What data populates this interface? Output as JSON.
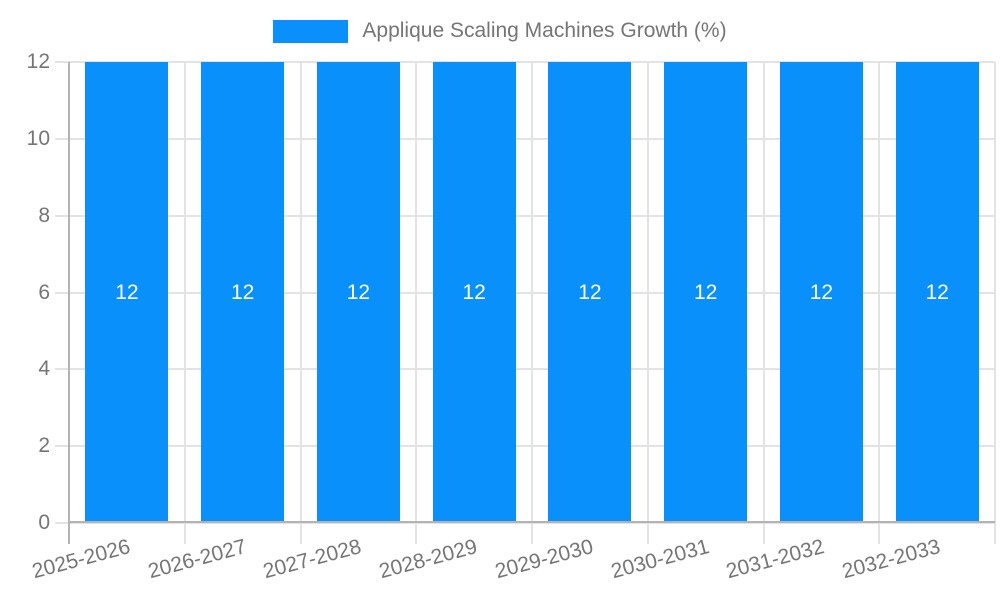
{
  "chart_data": {
    "type": "bar",
    "title": "Applique Scaling Machines Growth (%)",
    "legend_position": "top",
    "categories": [
      "2025-2026",
      "2026-2027",
      "2027-2028",
      "2028-2029",
      "2029-2030",
      "2030-2031",
      "2031-2032",
      "2032-2033"
    ],
    "series": [
      {
        "name": "Applique Scaling Machines Growth (%)",
        "values": [
          12,
          12,
          12,
          12,
          12,
          12,
          12,
          12
        ]
      }
    ],
    "bar_labels": [
      "12",
      "12",
      "12",
      "12",
      "12",
      "12",
      "12",
      "12"
    ],
    "xlabel": "",
    "ylabel": "",
    "yticks": [
      0,
      2,
      4,
      6,
      8,
      10,
      12
    ],
    "ylim": [
      0,
      12
    ],
    "grid": true,
    "colors": {
      "bar": "#0990fa",
      "bar_label": "#ffffff",
      "axis_text": "#757575",
      "gridline": "#e3e3e3",
      "axis_line": "#b3b3b3",
      "background": "#ffffff"
    }
  }
}
